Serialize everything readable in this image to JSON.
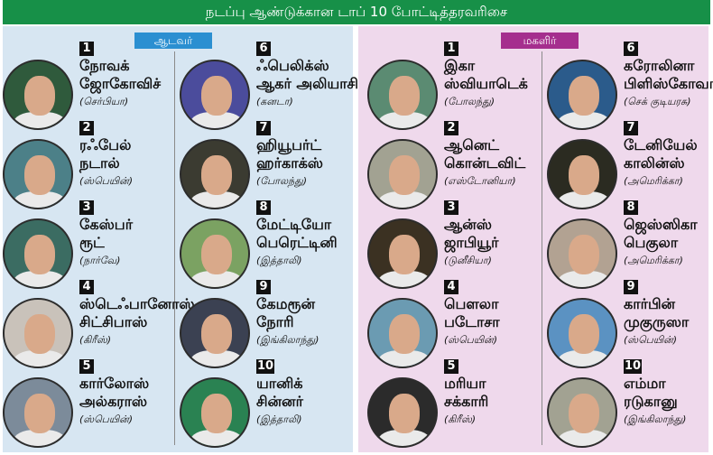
{
  "title": "நடப்பு ஆண்டுக்கான டாப் 10 போட்டித்தரவரிசை",
  "men": {
    "label": "ஆடவர்",
    "color": "#2b8fd1",
    "players": [
      {
        "rank": "1",
        "name1": "நோவக்",
        "name2": "ஜோகோவிச்",
        "country": "(செர்பியா)",
        "photo_color": "#2f5a3c"
      },
      {
        "rank": "2",
        "name1": "ரஃபேல்",
        "name2": "நடால்",
        "country": "(ஸ்பெயின்)",
        "photo_color": "#4c8088"
      },
      {
        "rank": "3",
        "name1": "கேஸ்பர்",
        "name2": "ரூட்",
        "country": "(நார்வே)",
        "photo_color": "#3b6c62"
      },
      {
        "rank": "4",
        "name1": "ஸ்டெஃபானோஸ்",
        "name2": "சிட்சிபாஸ்",
        "country": "(கிரீஸ்)",
        "photo_color": "#c9c2ba"
      },
      {
        "rank": "5",
        "name1": "கார்லோஸ்",
        "name2": "அல்கராஸ்",
        "country": "(ஸ்பெயின்)",
        "photo_color": "#7c8b9a"
      },
      {
        "rank": "6",
        "name1": "ஃபெலிக்ஸ்",
        "name2": "ஆகர் அலியாசிமே",
        "country": "(கனடா)",
        "photo_color": "#4b4c9c"
      },
      {
        "rank": "7",
        "name1": "ஹியூபர்ட்",
        "name2": "ஹர்காக்ஸ்",
        "country": "(போலந்து)",
        "photo_color": "#3b3b31"
      },
      {
        "rank": "8",
        "name1": "மேட்டியோ",
        "name2": "பெரெட்டினி",
        "country": "(இத்தாலி)",
        "photo_color": "#7ba262"
      },
      {
        "rank": "9",
        "name1": "கேமரூன்",
        "name2": "நோரி",
        "country": "(இங்கிலாந்து)",
        "photo_color": "#3b4152"
      },
      {
        "rank": "10",
        "name1": "யானிக்",
        "name2": "சின்னர்",
        "country": "(இத்தாலி)",
        "photo_color": "#2a8252"
      }
    ]
  },
  "women": {
    "label": "மகளிர்",
    "color": "#a52e8e",
    "players": [
      {
        "rank": "1",
        "name1": "இகா",
        "name2": "ஸ்வியாடெக்",
        "country": "(போலந்து)",
        "photo_color": "#5b8b72"
      },
      {
        "rank": "2",
        "name1": "ஆனெட்",
        "name2": "கொன்டவிட்",
        "country": "(எஸ்டோனியா)",
        "photo_color": "#a2a292"
      },
      {
        "rank": "3",
        "name1": "ஆன்ஸ்",
        "name2": "ஜாபியூர்",
        "country": "(டுனீசியா)",
        "photo_color": "#3b3122"
      },
      {
        "rank": "4",
        "name1": "பௌலா",
        "name2": "படோசா",
        "country": "(ஸ்பெயின்)",
        "photo_color": "#6b9bb2"
      },
      {
        "rank": "5",
        "name1": "மரியா",
        "name2": "சக்காரி",
        "country": "(கிரீஸ்)",
        "photo_color": "#2b2b2b"
      },
      {
        "rank": "6",
        "name1": "கரோலினா",
        "name2": "பிளிஸ்கோவா",
        "country": "(செக் குடியரசு)",
        "photo_color": "#2b5b8b"
      },
      {
        "rank": "7",
        "name1": "டேனியேல்",
        "name2": "காலின்ஸ்",
        "country": "(அமெரிக்கா)",
        "photo_color": "#2b2b21"
      },
      {
        "rank": "8",
        "name1": "ஜெஸ்ஸிகா",
        "name2": "பெகுலா",
        "country": "(அமெரிக்கா)",
        "photo_color": "#b2a292"
      },
      {
        "rank": "9",
        "name1": "கார்பின்",
        "name2": "முகுருஸா",
        "country": "(ஸ்பெயின்)",
        "photo_color": "#5b92c2"
      },
      {
        "rank": "10",
        "name1": "எம்மா",
        "name2": "ரடுகானு",
        "country": "(இங்கிலாந்து)",
        "photo_color": "#a2a292"
      }
    ]
  }
}
